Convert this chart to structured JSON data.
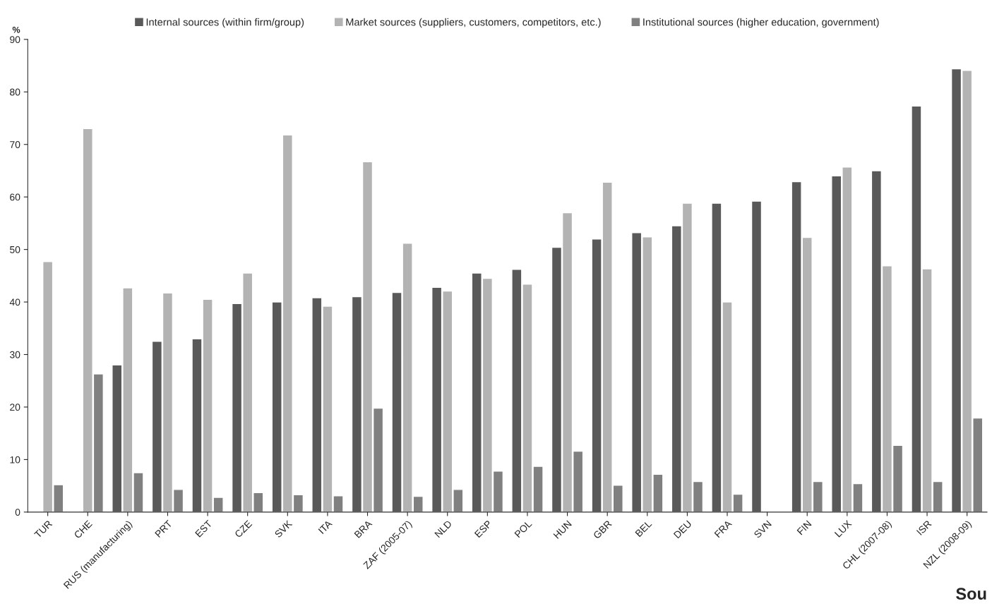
{
  "chart_data": {
    "type": "bar",
    "ylabel": "%",
    "categories": [
      "TUR",
      "CHE",
      "RUS (manufacturing)",
      "PRT",
      "EST",
      "CZE",
      "SVK",
      "ITA",
      "BRA",
      "ZAF (2005-07)",
      "NLD",
      "ESP",
      "POL",
      "HUN",
      "GBR",
      "BEL",
      "DEU",
      "FRA",
      "SVN",
      "FIN",
      "LUX",
      "CHL (2007-08)",
      "ISR",
      "NZL (2008-09)"
    ],
    "series": [
      {
        "name": "Internal sources (within firm/group)",
        "color": "#595959",
        "values": [
          null,
          null,
          28,
          32.5,
          33,
          39.7,
          40,
          40.8,
          41,
          41.8,
          42.8,
          45.5,
          46.2,
          50.4,
          52,
          53.2,
          54.5,
          58.8,
          59.2,
          62.9,
          64,
          65,
          77.3,
          84.4
        ]
      },
      {
        "name": "Market sources (suppliers, customers, competitors, etc.)",
        "color": "#b3b3b3",
        "values": [
          47.7,
          73,
          42.7,
          41.7,
          40.5,
          45.5,
          71.8,
          39.2,
          66.7,
          51.2,
          42.1,
          44.5,
          43.4,
          57,
          62.8,
          52.4,
          58.8,
          40,
          null,
          52.3,
          65.7,
          46.9,
          46.3,
          84.1
        ]
      },
      {
        "name": "Institutional sources (higher education, government)",
        "color": "#808080",
        "values": [
          5.2,
          26.3,
          7.5,
          4.3,
          2.8,
          3.7,
          3.3,
          3.1,
          19.8,
          3,
          4.3,
          7.8,
          8.7,
          11.6,
          5.1,
          7.2,
          5.8,
          3.4,
          null,
          5.8,
          5.4,
          12.7,
          5.8,
          17.9
        ]
      }
    ],
    "ylim": [
      0,
      90
    ],
    "yticks": [
      0,
      10,
      20,
      30,
      40,
      50,
      60,
      70,
      80,
      90
    ],
    "grid": false,
    "legend": "top",
    "annotations": [
      "Sou"
    ]
  }
}
